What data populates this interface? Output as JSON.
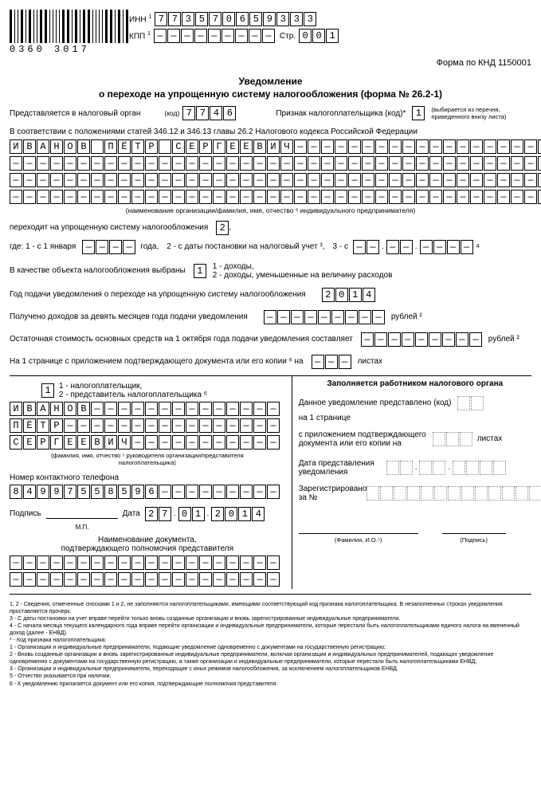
{
  "header": {
    "barcode_digits": "0360 3017",
    "inn_label": "ИНН",
    "inn": [
      "7",
      "7",
      "3",
      "5",
      "7",
      "0",
      "6",
      "5",
      "9",
      "3",
      "3",
      "3"
    ],
    "kpp_label": "КПП",
    "kpp": [
      "—",
      "—",
      "—",
      "—",
      "—",
      "—",
      "—",
      "—",
      "—"
    ],
    "page_label": "Стр.",
    "page": [
      "0",
      "0",
      "1"
    ]
  },
  "knd": "Форма по КНД 1150001",
  "title1": "Уведомление",
  "title2": "о переходе на упрощенную систему налогообложения (форма № 26.2-1)",
  "tax_office": {
    "label": "Представляется в налоговый орган",
    "code_label": "(код)",
    "code": [
      "7",
      "7",
      "4",
      "6"
    ]
  },
  "taxpayer_sign": {
    "label": "Признак налогоплательщика (код)*",
    "value": "1",
    "hint": "(выбирается из перечня,\nприведенного внизу листа)"
  },
  "statute": "В соответствии с положениями статей 346.12 и 346.13 главы 26.2 Налогового кодекса Российской Федерации",
  "name_rows": [
    [
      "И",
      "В",
      "А",
      "Н",
      "О",
      "В",
      "",
      "П",
      "Ё",
      "Т",
      "Р",
      "",
      "С",
      "Е",
      "Р",
      "Г",
      "Е",
      "Е",
      "В",
      "И",
      "Ч",
      "—",
      "—",
      "—",
      "—",
      "—",
      "—",
      "—",
      "—",
      "—",
      "—",
      "—",
      "—",
      "—",
      "—",
      "—",
      "—",
      "—",
      "—",
      "—"
    ],
    [
      "—",
      "—",
      "—",
      "—",
      "—",
      "—",
      "—",
      "—",
      "—",
      "—",
      "—",
      "—",
      "—",
      "—",
      "—",
      "—",
      "—",
      "—",
      "—",
      "—",
      "—",
      "—",
      "—",
      "—",
      "—",
      "—",
      "—",
      "—",
      "—",
      "—",
      "—",
      "—",
      "—",
      "—",
      "—",
      "—",
      "—",
      "—",
      "—",
      "—"
    ],
    [
      "—",
      "—",
      "—",
      "—",
      "—",
      "—",
      "—",
      "—",
      "—",
      "—",
      "—",
      "—",
      "—",
      "—",
      "—",
      "—",
      "—",
      "—",
      "—",
      "—",
      "—",
      "—",
      "—",
      "—",
      "—",
      "—",
      "—",
      "—",
      "—",
      "—",
      "—",
      "—",
      "—",
      "—",
      "—",
      "—",
      "—",
      "—",
      "—",
      "—"
    ],
    [
      "—",
      "—",
      "—",
      "—",
      "—",
      "—",
      "—",
      "—",
      "—",
      "—",
      "—",
      "—",
      "—",
      "—",
      "—",
      "—",
      "—",
      "—",
      "—",
      "—",
      "—",
      "—",
      "—",
      "—",
      "—",
      "—",
      "—",
      "—",
      "—",
      "—",
      "—",
      "—",
      "—",
      "—",
      "—",
      "—",
      "—",
      "—",
      "—",
      "—"
    ]
  ],
  "name_caption": "(наименование организации/фамилия, имя, отчество ⁵ индивидуального предпринимателя)",
  "switch": {
    "label": "переходит на упрощенную систему налогообложения",
    "value": "2",
    "comma": ","
  },
  "where": {
    "prefix": "где: 1 - с 1 января",
    "year": [
      "—",
      "—",
      "—",
      "—"
    ],
    "year_lbl": "года,",
    "opt2": "2 - с даты постановки на налоговый учет ³,",
    "opt3": "3 - с",
    "d": [
      "—",
      "—"
    ],
    "m": [
      "—",
      "—"
    ],
    "y4": [
      "—",
      "—",
      "—",
      "—"
    ],
    "sup": "4"
  },
  "object": {
    "label": "В качестве объекта налогообложения выбраны",
    "value": "1",
    "hint": "1 - доходы,\n2 - доходы, уменьшенные на величину расходов"
  },
  "year_notice": {
    "label": "Год подачи уведомления о переходе на упрощенную систему налогообложения",
    "value": [
      "2",
      "0",
      "1",
      "4"
    ]
  },
  "income": {
    "label": "Получено доходов за девять месяцев года подачи уведомления",
    "value": [
      "—",
      "—",
      "—",
      "—",
      "—",
      "—",
      "—",
      "—",
      "—"
    ],
    "unit": "рублей ²"
  },
  "residual": {
    "label": "Остаточная стоимость основных средств на 1 октября года подачи уведомления составляет",
    "value": [
      "—",
      "—",
      "—",
      "—",
      "—",
      "—",
      "—",
      "—",
      "—"
    ],
    "unit": "рублей ²"
  },
  "pages": {
    "label_pre": "На 1 странице с приложением подтверждающего документа или его копии ⁶ на",
    "value": [
      "—",
      "—",
      "—"
    ],
    "label_post": "листах"
  },
  "left": {
    "who": {
      "value": "1",
      "hint": "1 - налогоплательщик,\n2 - представитель налогоплательщика ⁶"
    },
    "rows": [
      [
        "И",
        "В",
        "А",
        "Н",
        "О",
        "В",
        "—",
        "—",
        "—",
        "—",
        "—",
        "—",
        "—",
        "—",
        "—",
        "—",
        "—",
        "—",
        "—",
        "—"
      ],
      [
        "П",
        "Ё",
        "Т",
        "Р",
        "—",
        "—",
        "—",
        "—",
        "—",
        "—",
        "—",
        "—",
        "—",
        "—",
        "—",
        "—",
        "—",
        "—",
        "—",
        "—"
      ],
      [
        "С",
        "Е",
        "Р",
        "Г",
        "Е",
        "Е",
        "В",
        "И",
        "Ч",
        "—",
        "—",
        "—",
        "—",
        "—",
        "—",
        "—",
        "—",
        "—",
        "—",
        "—"
      ]
    ],
    "caption": "(фамилия, имя, отчество ⁵ руководителя организации/представителя\nналогоплательщика)",
    "phone_label": "Номер контактного телефона",
    "phone": [
      "8",
      "4",
      "9",
      "9",
      "7",
      "5",
      "5",
      "8",
      "5",
      "9",
      "6",
      "—",
      "—",
      "—",
      "—",
      "—",
      "—",
      "—",
      "—",
      "—"
    ],
    "sign_label": "Подпись",
    "date_label": "Дата",
    "date_d": [
      "2",
      "7"
    ],
    "date_m": [
      "0",
      "1"
    ],
    "date_y": [
      "2",
      "0",
      "1",
      "4"
    ],
    "mp": "М.П.",
    "doc_title": "Наименование документа,\nподтверждающего полномочия представителя",
    "doc_rows": [
      [
        "—",
        "—",
        "—",
        "—",
        "—",
        "—",
        "—",
        "—",
        "—",
        "—",
        "—",
        "—",
        "—",
        "—",
        "—",
        "—",
        "—",
        "—",
        "—",
        "—"
      ],
      [
        "—",
        "—",
        "—",
        "—",
        "—",
        "—",
        "—",
        "—",
        "—",
        "—",
        "—",
        "—",
        "—",
        "—",
        "—",
        "—",
        "—",
        "—",
        "—",
        "—"
      ]
    ]
  },
  "right": {
    "title": "Заполняется работником налогового органа",
    "presented": "Данное уведомление представлено (код)",
    "on_pages": "на 1 странице",
    "attach": "с приложением подтверждающего\nдокумента или его копии на",
    "attach_post": "листах",
    "date_label": "Дата представления\nуведомления",
    "reg_label": "Зарегистрировано\nза №",
    "fio": "(Фамилия, И.О.⁵)",
    "sign": "(Подпись)"
  },
  "footnotes": [
    "1, 2 - Сведения, отмеченные сносками 1 и 2, не заполняются налогоплательщиками, имеющими соответствующий код признака налогоплательщика. В незаполненных строках уведомления проставляется прочерк.",
    "3 - С даты постановки на учет вправе перейти только вновь созданные организации и вновь зарегистрированные индивидуальные предприниматели.",
    "4 - С начала месяца текущего календарного года вправе перейти организации и индивидуальные предприниматели, которые перестали быть налогоплательщиками единого налога на вмененный доход (далее - ЕНВД).",
    "* - Код признака налогоплательщика:",
    "   1 - Организации и индивидуальные предприниматели, подающие уведомление одновременно с документами на государственную регистрацию;",
    "   2 - Вновь созданные организации и вновь зарегистрированные индивидуальные предприниматели, включая организации и индивидуальных предпринимателей, подающих уведомление одновременно с документами на государственную регистрацию, а также организации и индивидуальные предприниматели, которые перестали быть налогоплательщиками ЕНВД;",
    "   3 - Организации и индивидуальные предприниматели, переходящие с иных режимов налогообложения, за исключением налогоплательщиков ЕНВД.",
    "5 - Отчество указывается при наличии.",
    "6 - К уведомлению прилагается документ или его копия, подтверждающие полномочия представителя."
  ]
}
